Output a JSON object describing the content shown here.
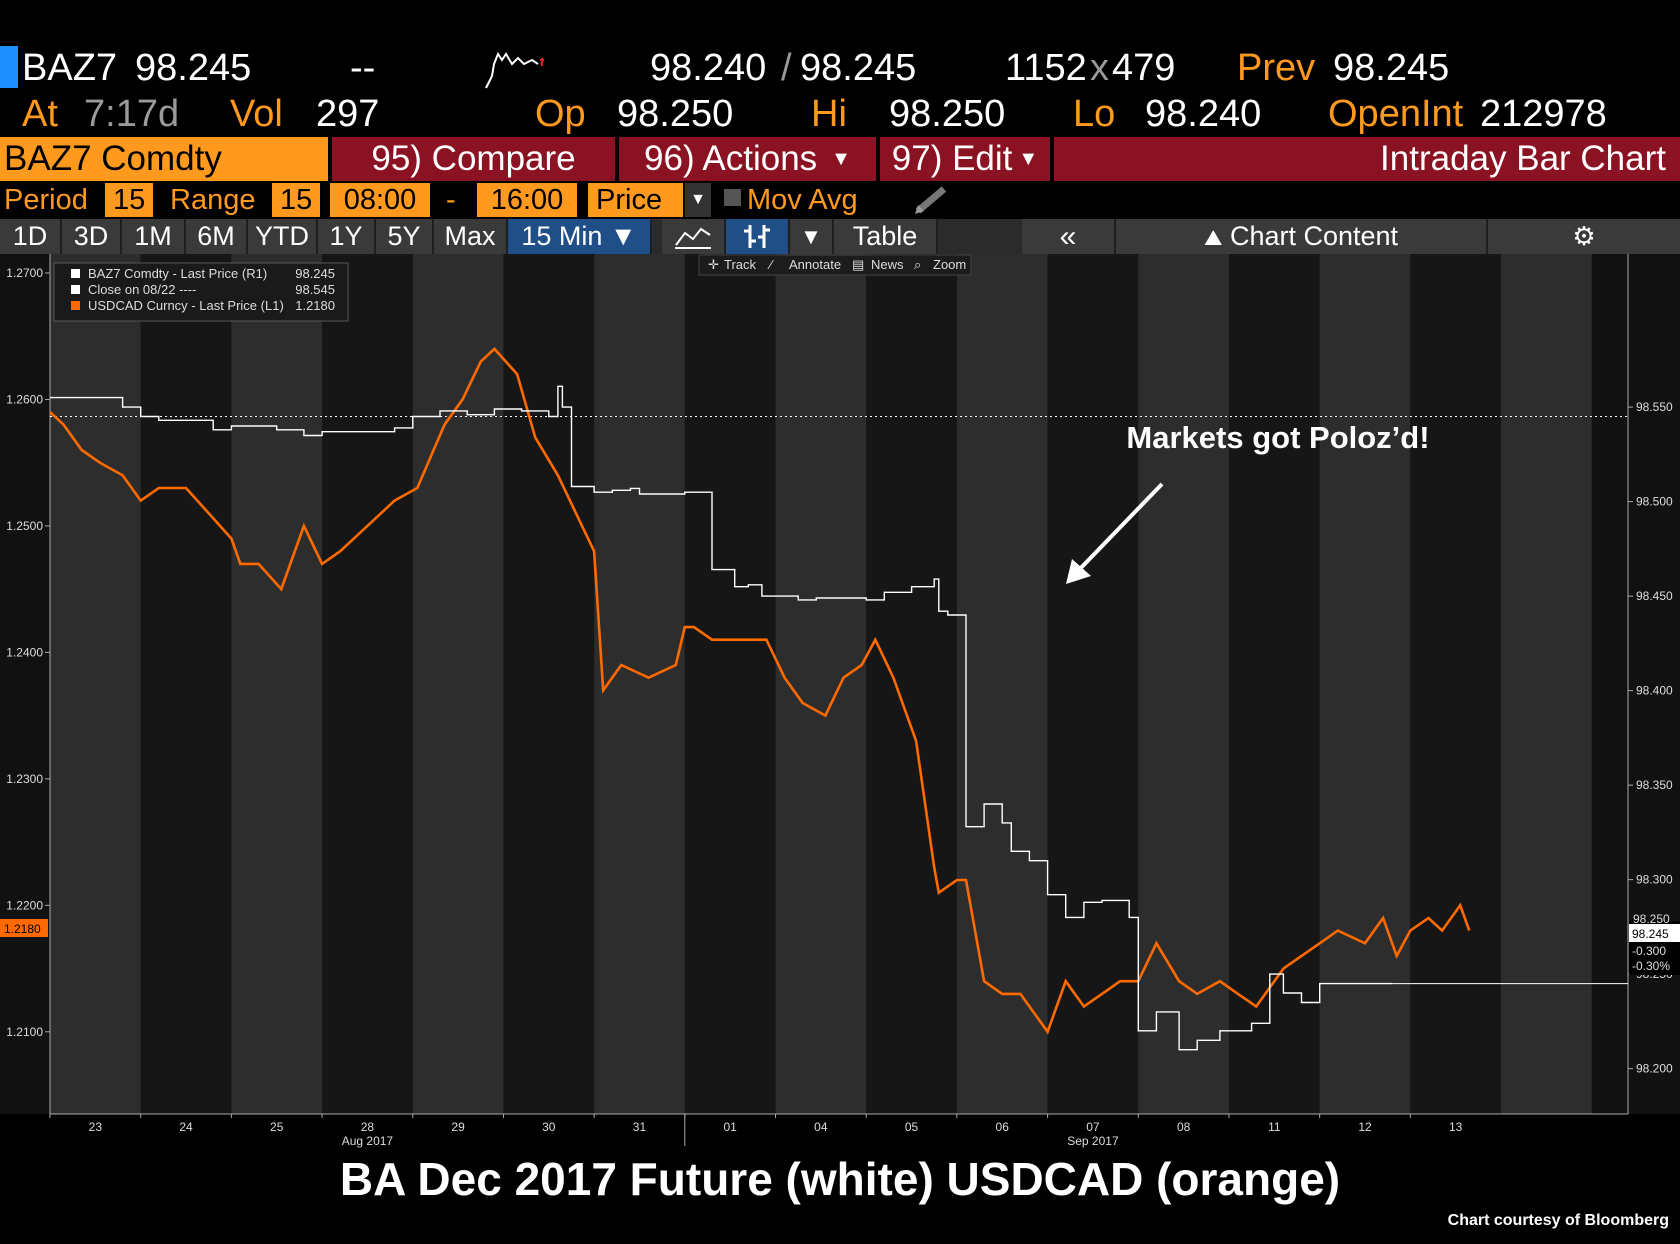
{
  "quote": {
    "ticker": "BAZ7",
    "last": "98.245",
    "change": "--",
    "bid": "98.240",
    "ask": "98.245",
    "bid_size": "1152",
    "ask_size": "479",
    "prev_label": "Prev",
    "prev": "98.245",
    "at_label": "At",
    "at_time": "7:17d",
    "vol_label": "Vol",
    "vol": "297",
    "op_label": "Op",
    "op": "98.250",
    "hi_label": "Hi",
    "hi": "98.250",
    "lo_label": "Lo",
    "lo": "98.240",
    "openint_label": "OpenInt",
    "openint": "212978"
  },
  "menu": {
    "security": "BAZ7 Comdty",
    "compare": "95) Compare",
    "actions": "96) Actions",
    "edit": "97) Edit",
    "title": "Intraday Bar Chart"
  },
  "settings": {
    "period_label": "Period",
    "period": "15",
    "range_label": "Range",
    "range": "15",
    "start": "08:00",
    "dash": "-",
    "end": "16:00",
    "field": "Price",
    "mov_avg": "Mov Avg"
  },
  "tabs": [
    "1D",
    "3D",
    "1M",
    "6M",
    "YTD",
    "1Y",
    "5Y",
    "Max"
  ],
  "interval": "15 Min ▼",
  "table_label": "Table",
  "chart_content_label": "Chart Content",
  "tools": [
    "Track",
    "Annotate",
    "News",
    "Zoom"
  ],
  "legend": [
    {
      "label": "BAZ7 Comdty - Last Price (R1)",
      "value": "98.245",
      "color": "#ffffff"
    },
    {
      "label": "Close on 08/22 ----",
      "value": "98.545",
      "color": "#ffffff"
    },
    {
      "label": "USDCAD Curncy - Last Price (L1)",
      "value": "1.2180",
      "color": "#ff6a00"
    }
  ],
  "annotation": "Markets got Poloz’d!",
  "caption": "BA Dec 2017 Future (white) USDCAD (orange)",
  "credit": "Chart courtesy of Bloomberg",
  "current_labels": {
    "left": "1.2180",
    "right_price": "98.245",
    "right_change": "-0.300",
    "right_pct": "-0.30%",
    "right_hidden": "98.250"
  },
  "chart_data": {
    "type": "line",
    "x_ticks": [
      "23",
      "24",
      "25",
      "28",
      "29",
      "30",
      "31",
      "01",
      "04",
      "05",
      "06",
      "07",
      "08",
      "11",
      "12",
      "13"
    ],
    "x_month_labels": [
      "Aug 2017",
      "Sep 2017"
    ],
    "left_axis": {
      "ticks": [
        "1.2700",
        "1.2600",
        "1.2500",
        "1.2400",
        "1.2300",
        "1.2200",
        "1.2100"
      ],
      "range": [
        1.2035,
        1.2715
      ]
    },
    "right_axis": {
      "ticks": [
        "98.550",
        "98.500",
        "98.450",
        "98.400",
        "98.350",
        "98.300",
        "98.250",
        "98.200"
      ],
      "range": [
        98.176,
        98.631
      ]
    },
    "previous_close": 98.545,
    "series": [
      {
        "name": "USDCAD Curncy - Last Price (L1)",
        "color": "#ff6a00",
        "axis": "left",
        "x": [
          0.0,
          0.15,
          0.35,
          0.55,
          0.8,
          1.0,
          1.2,
          1.5,
          1.75,
          2.0,
          2.1,
          2.3,
          2.55,
          2.8,
          3.0,
          3.2,
          3.5,
          3.8,
          4.05,
          4.35,
          4.55,
          4.75,
          4.9,
          5.15,
          5.35,
          5.6,
          5.8,
          6.0,
          6.1,
          6.3,
          6.6,
          6.9,
          7.0,
          7.1,
          7.3,
          7.6,
          7.9,
          8.1,
          8.3,
          8.55,
          8.75,
          8.95,
          9.1,
          9.3,
          9.55,
          9.75,
          9.8,
          10.0,
          10.1,
          10.3,
          10.5,
          10.7,
          10.9,
          11.0,
          11.2,
          11.4,
          11.6,
          11.8,
          12.0,
          12.2,
          12.45,
          12.65,
          12.9,
          13.1,
          13.3,
          13.6,
          13.8,
          14.0,
          14.2,
          14.5,
          14.7,
          14.85,
          15.0,
          15.2,
          15.35,
          15.55,
          15.65
        ],
        "y": [
          1.259,
          1.258,
          1.256,
          1.255,
          1.254,
          1.252,
          1.253,
          1.253,
          1.251,
          1.249,
          1.247,
          1.247,
          1.245,
          1.25,
          1.247,
          1.248,
          1.25,
          1.252,
          1.253,
          1.258,
          1.26,
          1.263,
          1.264,
          1.262,
          1.257,
          1.254,
          1.251,
          1.248,
          1.237,
          1.239,
          1.238,
          1.239,
          1.242,
          1.242,
          1.241,
          1.241,
          1.241,
          1.238,
          1.236,
          1.235,
          1.238,
          1.239,
          1.241,
          1.238,
          1.233,
          1.223,
          1.221,
          1.222,
          1.222,
          1.214,
          1.213,
          1.213,
          1.211,
          1.21,
          1.214,
          1.212,
          1.213,
          1.214,
          1.214,
          1.217,
          1.214,
          1.213,
          1.214,
          1.213,
          1.212,
          1.215,
          1.216,
          1.217,
          1.218,
          1.217,
          1.219,
          1.216,
          1.218,
          1.219,
          1.218,
          1.22,
          1.218
        ]
      },
      {
        "name": "BAZ7 Comdty - Last Price (R1)",
        "color": "#ffffff",
        "axis": "right",
        "x": [
          0.0,
          0.4,
          0.8,
          1.0,
          1.2,
          1.5,
          1.8,
          2.0,
          2.2,
          2.5,
          2.8,
          3.0,
          3.2,
          3.5,
          3.8,
          4.0,
          4.3,
          4.6,
          4.9,
          5.0,
          5.2,
          5.5,
          5.6,
          5.65,
          5.75,
          6.0,
          6.2,
          6.4,
          6.5,
          7.0,
          7.3,
          7.55,
          7.7,
          7.85,
          8.05,
          8.25,
          8.45,
          9.0,
          9.2,
          9.5,
          9.75,
          9.8,
          9.9,
          10.1,
          10.3,
          10.5,
          10.6,
          10.8,
          11.0,
          11.2,
          11.4,
          11.6,
          11.9,
          12.0,
          12.2,
          12.45,
          12.65,
          12.9,
          13.05,
          13.25,
          13.45,
          13.6,
          13.8,
          14.0,
          14.2,
          14.5,
          14.7,
          14.8
        ],
        "y": [
          98.555,
          98.555,
          98.55,
          98.545,
          98.543,
          98.543,
          98.538,
          98.54,
          98.54,
          98.538,
          98.535,
          98.537,
          98.537,
          98.537,
          98.539,
          98.545,
          98.548,
          98.546,
          98.549,
          98.549,
          98.548,
          98.545,
          98.561,
          98.55,
          98.508,
          98.505,
          98.506,
          98.507,
          98.504,
          98.505,
          98.464,
          98.455,
          98.456,
          98.45,
          98.45,
          98.448,
          98.449,
          98.448,
          98.452,
          98.455,
          98.459,
          98.442,
          98.44,
          98.328,
          98.34,
          98.33,
          98.315,
          98.31,
          98.292,
          98.28,
          98.288,
          98.289,
          98.28,
          98.22,
          98.23,
          98.21,
          98.215,
          98.22,
          98.22,
          98.224,
          98.25,
          98.24,
          98.235,
          98.245,
          98.245,
          98.245,
          98.245,
          98.245
        ]
      }
    ]
  }
}
